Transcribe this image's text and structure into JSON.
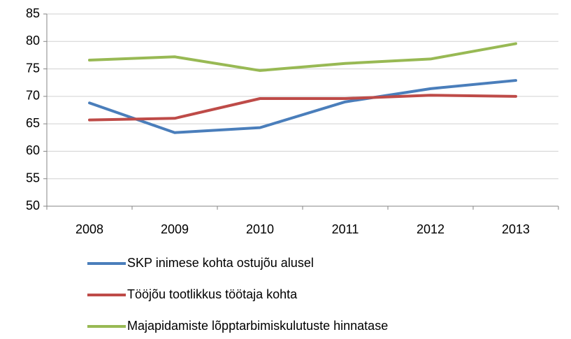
{
  "chart_data": {
    "type": "line",
    "categories": [
      "2008",
      "2009",
      "2010",
      "2011",
      "2012",
      "2013"
    ],
    "series": [
      {
        "name": "SKP inimese kohta ostujõu alusel",
        "color": "#4a7ebb",
        "values": [
          68.8,
          63.4,
          64.3,
          69.0,
          71.4,
          72.9
        ]
      },
      {
        "name": "Tööjõu tootlikkus töötaja kohta",
        "color": "#be4b48",
        "values": [
          65.7,
          66.0,
          69.6,
          69.6,
          70.2,
          70.0
        ]
      },
      {
        "name": "Majapidamiste lõpptarbimiskulutuste hinnatase",
        "color": "#98b954",
        "values": [
          76.6,
          77.2,
          74.7,
          76.0,
          76.8,
          79.6
        ]
      }
    ],
    "ylim": [
      50,
      85
    ],
    "yticks": [
      50,
      55,
      60,
      65,
      70,
      75,
      80,
      85
    ],
    "grid": true,
    "legend": "bottom"
  }
}
